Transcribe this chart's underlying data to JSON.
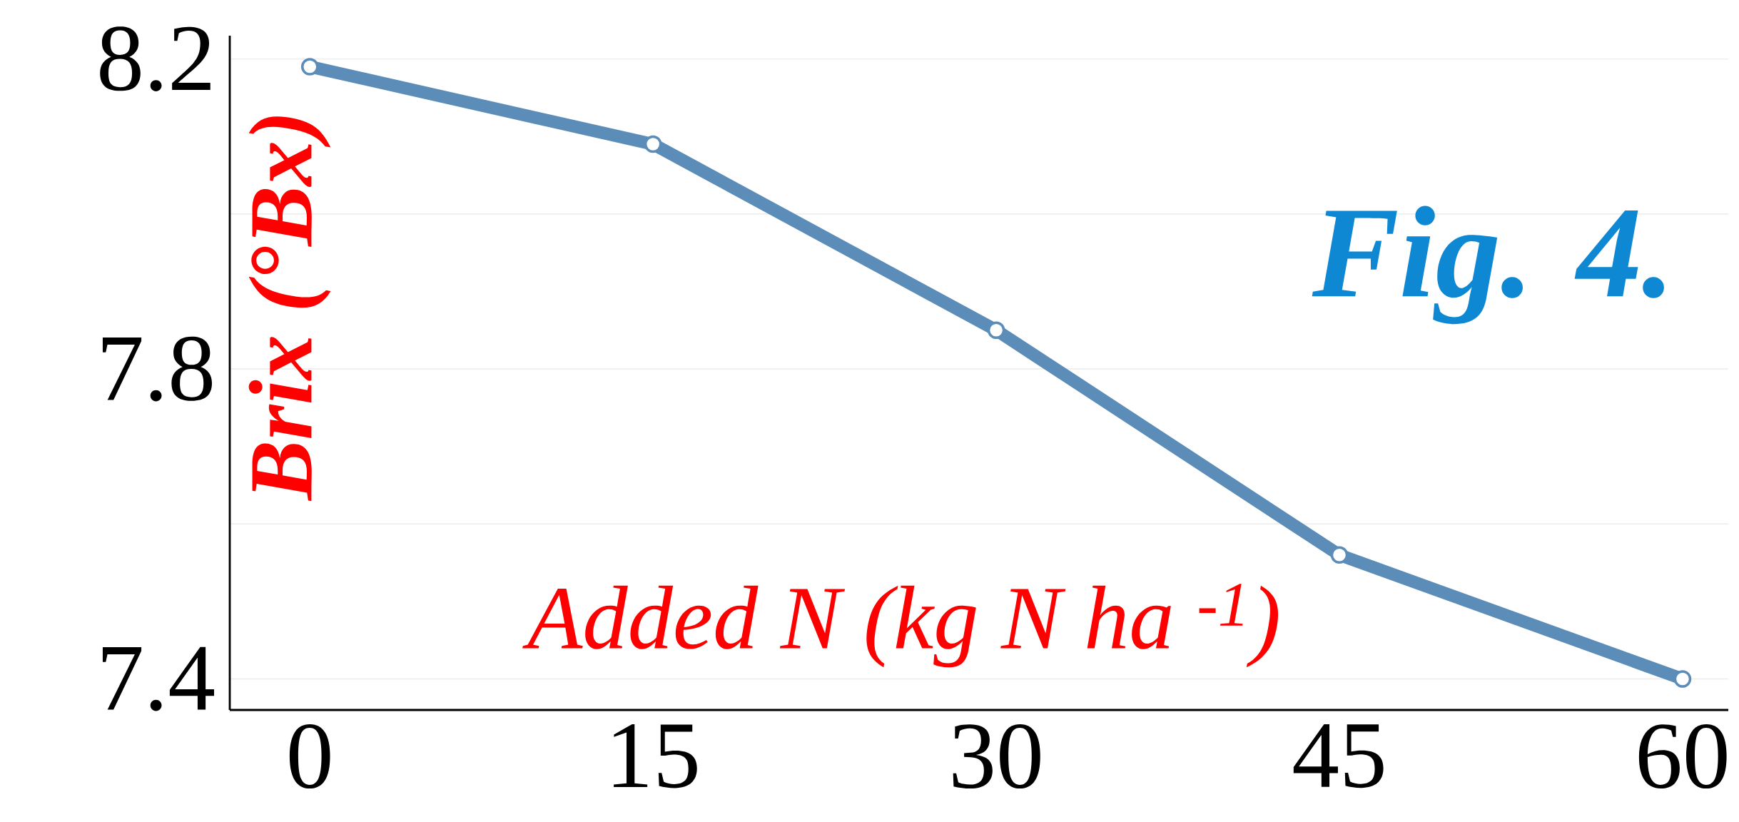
{
  "chart_data": {
    "type": "line",
    "xlabel": "Added N (kg N ha $^{-1}$)",
    "ylabel": "Brix (°Bx)",
    "annotations": [
      "Fig. 4."
    ],
    "x": [
      0,
      15,
      30,
      45,
      60
    ],
    "series": [
      {
        "color": "#5b8db8",
        "values": [
          8.19,
          8.09,
          7.85,
          7.56,
          7.4
        ]
      }
    ],
    "xlim": [
      -3.5,
      62
    ],
    "ylim": [
      7.36,
      8.23
    ],
    "xticks": [
      0,
      15,
      30,
      45,
      60
    ],
    "yticks": [
      7.4,
      {
        "value": 7.6,
        "label": null
      },
      7.8,
      {
        "value": 8.0,
        "label": null
      },
      8.2
    ],
    "grid": "y",
    "marker": "circle",
    "line_style": "solid"
  }
}
